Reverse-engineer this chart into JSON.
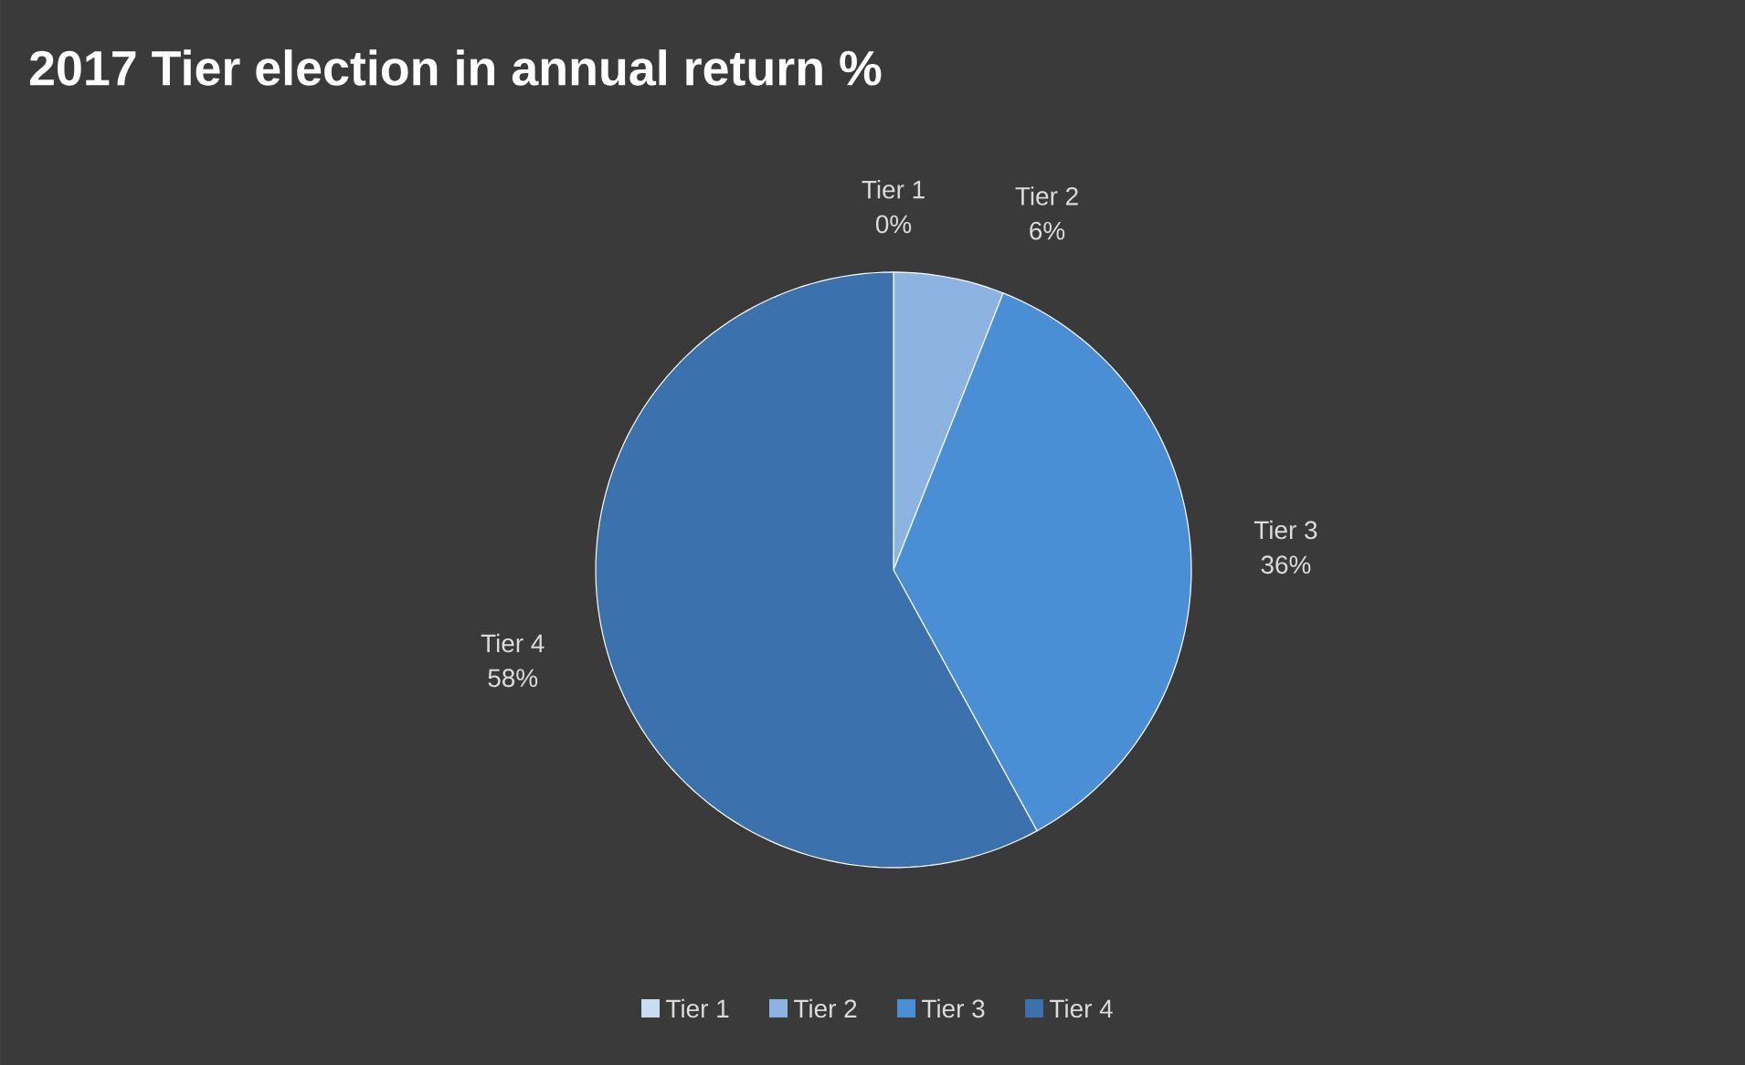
{
  "chart_data": {
    "type": "pie",
    "title": "2017 Tier election in annual return %",
    "categories": [
      "Tier 1",
      "Tier 2",
      "Tier 3",
      "Tier 4"
    ],
    "values": [
      0,
      6,
      36,
      58
    ],
    "value_labels": [
      "0%",
      "6%",
      "36%",
      "58%"
    ],
    "colors": [
      "#c9dcf2",
      "#8db3e2",
      "#4a8fd6",
      "#3b71ad"
    ],
    "legend": "bottom"
  }
}
